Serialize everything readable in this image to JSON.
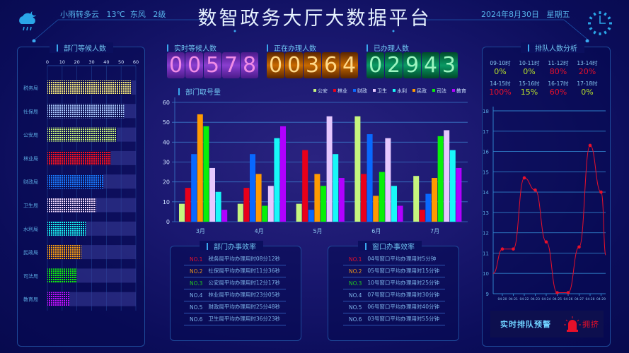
{
  "header": {
    "title": "数智政务大厅大数据平台",
    "weather": "小雨转多云   13℃  东风   2级",
    "date": "2024年8月30日   星期五",
    "weather_icon": "cloud-rain-moon-icon",
    "clock_icon": "clock-icon"
  },
  "left_panel": {
    "title": "部门等候人数",
    "chart_data": {
      "type": "bar",
      "orientation": "horizontal",
      "xlim": [
        0,
        60
      ],
      "ticks": [
        "0",
        "10",
        "20",
        "30",
        "40",
        "50",
        "60"
      ],
      "categories": [
        "税务局",
        "社保局",
        "公安局",
        "林业局",
        "财政局",
        "卫生局",
        "水利局",
        "民政局",
        "司法局",
        "教育局"
      ],
      "values": [
        57,
        52,
        47,
        43,
        38,
        33,
        26,
        23,
        20,
        15
      ],
      "colors": [
        "#f5e87a",
        "#a9c8ff",
        "#c8f57a",
        "#ff1020",
        "#1a7aff",
        "#f0d8ff",
        "#19f5f5",
        "#ffa010",
        "#10f010",
        "#c010ff"
      ]
    }
  },
  "counters": [
    {
      "label": "实时等候人数",
      "value": "00578"
    },
    {
      "label": "正在办理人数",
      "value": "00364"
    },
    {
      "label": "已办理人数",
      "value": "02943"
    }
  ],
  "bar_section": {
    "title": "部门取号量",
    "chart_data": {
      "type": "bar",
      "categories": [
        "3月",
        "4月",
        "5月",
        "6月",
        "7月"
      ],
      "ylim": [
        0,
        60
      ],
      "yticks": [
        "0",
        "10",
        "20",
        "30",
        "40",
        "50",
        "60"
      ],
      "grid": true,
      "legend": "top-right",
      "series": [
        {
          "name": "公安",
          "color": "#c6f57e",
          "values": [
            9,
            9,
            9,
            53,
            23
          ]
        },
        {
          "name": "林业",
          "color": "#e8001a",
          "values": [
            17,
            17,
            36,
            24,
            6
          ]
        },
        {
          "name": "财政",
          "color": "#0868ff",
          "values": [
            34,
            34,
            6,
            44,
            14
          ]
        },
        {
          "name": "卫生",
          "color": "#e6c8ff",
          "values": [
            27,
            18,
            53,
            42,
            46
          ]
        },
        {
          "name": "水利",
          "color": "#18f8f8",
          "values": [
            15,
            42,
            34,
            18,
            36
          ]
        },
        {
          "name": "民政",
          "color": "#ff9a00",
          "values": [
            54,
            24,
            24,
            13,
            22
          ]
        },
        {
          "name": "司法",
          "color": "#08f008",
          "values": [
            48,
            8,
            18,
            25,
            43
          ]
        },
        {
          "name": "教育",
          "color": "#b000ff",
          "values": [
            6,
            48,
            22,
            8,
            27
          ]
        }
      ],
      "bar_order": [
        "公安",
        "林业",
        "财政",
        "民政",
        "司法",
        "卫生",
        "水利",
        "教育"
      ]
    }
  },
  "dept_efficiency": {
    "title": "部门办事效率",
    "items": [
      {
        "rank": "NO.1",
        "text": "税务局平均办理用时08分12秒",
        "color": "#e8102a"
      },
      {
        "rank": "NO.2",
        "text": "社保局平均办理用时11分36秒",
        "color": "#e8941a"
      },
      {
        "rank": "NO.3",
        "text": "公安局平均办理用时12分17秒",
        "color": "#22c820"
      },
      {
        "rank": "NO.4",
        "text": "林业局平均办理用时23分05秒",
        "color": "#7fb6ea"
      },
      {
        "rank": "NO.5",
        "text": "财政局平均办理用时25分48秒",
        "color": "#7fb6ea"
      },
      {
        "rank": "NO.6",
        "text": "卫生局平均办理用时36分23秒",
        "color": "#7fb6ea"
      }
    ]
  },
  "window_efficiency": {
    "title": "窗口办事效率",
    "items": [
      {
        "rank": "NO.1",
        "text": "04号窗口平均办理用时5分钟",
        "color": "#e8102a"
      },
      {
        "rank": "NO.2",
        "text": "05号窗口平均办理用时15分钟",
        "color": "#e8941a"
      },
      {
        "rank": "NO.3",
        "text": "10号窗口平均办理用时25分钟",
        "color": "#22c820"
      },
      {
        "rank": "NO.4",
        "text": "07号窗口平均办理用时30分钟",
        "color": "#7fb6ea"
      },
      {
        "rank": "NO.5",
        "text": "06号窗口平均办理用时40分钟",
        "color": "#7fb6ea"
      },
      {
        "rank": "NO.6",
        "text": "03号窗口平均办理用时55分钟",
        "color": "#7fb6ea"
      }
    ]
  },
  "right_panel": {
    "title": "排队人数分析",
    "slots": [
      {
        "time": "09-10时",
        "pct": "0%",
        "color": "#b8e02a"
      },
      {
        "time": "10-11时",
        "pct": "0%",
        "color": "#b8e02a"
      },
      {
        "time": "11-12时",
        "pct": "80%",
        "color": "#e8102a"
      },
      {
        "time": "13-14时",
        "pct": "20%",
        "color": "#e8102a"
      },
      {
        "time": "14-15时",
        "pct": "100%",
        "color": "#e8102a"
      },
      {
        "time": "15-16时",
        "pct": "15%",
        "color": "#b8e02a"
      },
      {
        "time": "16-17时",
        "pct": "60%",
        "color": "#e8102a"
      },
      {
        "time": "17-18时",
        "pct": "0%",
        "color": "#b8e02a"
      }
    ],
    "chart_data": {
      "type": "line",
      "x": [
        "04-20",
        "04-21",
        "04-22",
        "04-23",
        "04-24",
        "04-25",
        "04-26",
        "04-27",
        "04-28",
        "04-29"
      ],
      "y": [
        11.2,
        11.2,
        14.7,
        14.1,
        11.55,
        9.05,
        9.05,
        11.3,
        16.3,
        14
      ],
      "ylim": [
        9,
        18
      ],
      "yticks": [
        "9",
        "10",
        "11",
        "12",
        "13",
        "14",
        "15",
        "16",
        "17",
        "18"
      ],
      "grid": true,
      "color": "#e8102a"
    },
    "alert": {
      "label": "实时排队预警",
      "status": "拥挤",
      "icon": "alarm-siren-icon"
    }
  }
}
